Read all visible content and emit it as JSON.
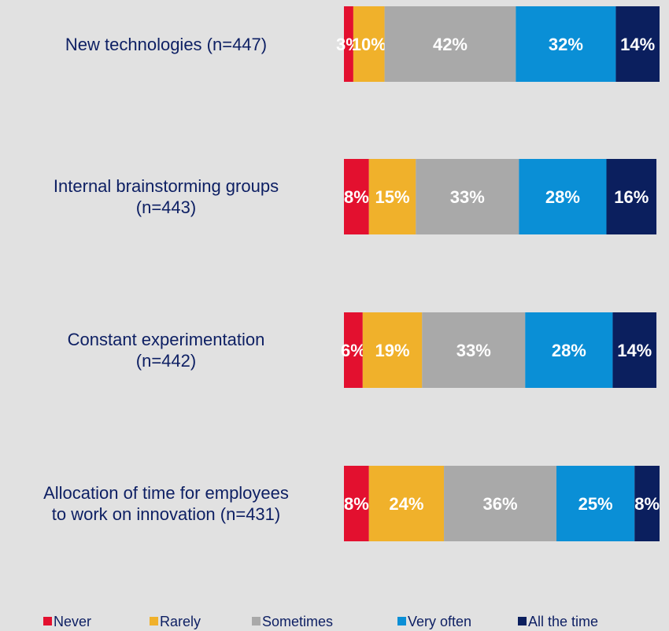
{
  "chart_data": {
    "type": "stacked_bar_horizontal",
    "categories": [
      "New technologies (n=447)",
      "Internal brainstorming groups\n(n=443)",
      "Constant experimentation\n(n=442)",
      "Allocation of time for employees\nto work on innovation (n=431)"
    ],
    "series": [
      {
        "name": "Never",
        "color": "#e3102f",
        "values": [
          3,
          8,
          6,
          8
        ],
        "value_labels": [
          "3%",
          "8%",
          "6%",
          "8%"
        ]
      },
      {
        "name": "Rarely",
        "color": "#f0b12b",
        "values": [
          10,
          15,
          19,
          24
        ],
        "value_labels": [
          "10%",
          "15%",
          "19%",
          "24%"
        ]
      },
      {
        "name": "Sometimes",
        "color": "#a9a9a9",
        "values": [
          42,
          33,
          33,
          36
        ],
        "value_labels": [
          "42%",
          "33%",
          "33%",
          "36%"
        ]
      },
      {
        "name": "Very often",
        "color": "#0a8fd6",
        "values": [
          32,
          28,
          28,
          25
        ],
        "value_labels": [
          "32%",
          "28%",
          "28%",
          "25%"
        ]
      },
      {
        "name": "All the time",
        "color": "#0b1f5e",
        "values": [
          14,
          16,
          14,
          8
        ],
        "value_labels": [
          "14%",
          "16%",
          "14%",
          "8%"
        ]
      }
    ]
  }
}
